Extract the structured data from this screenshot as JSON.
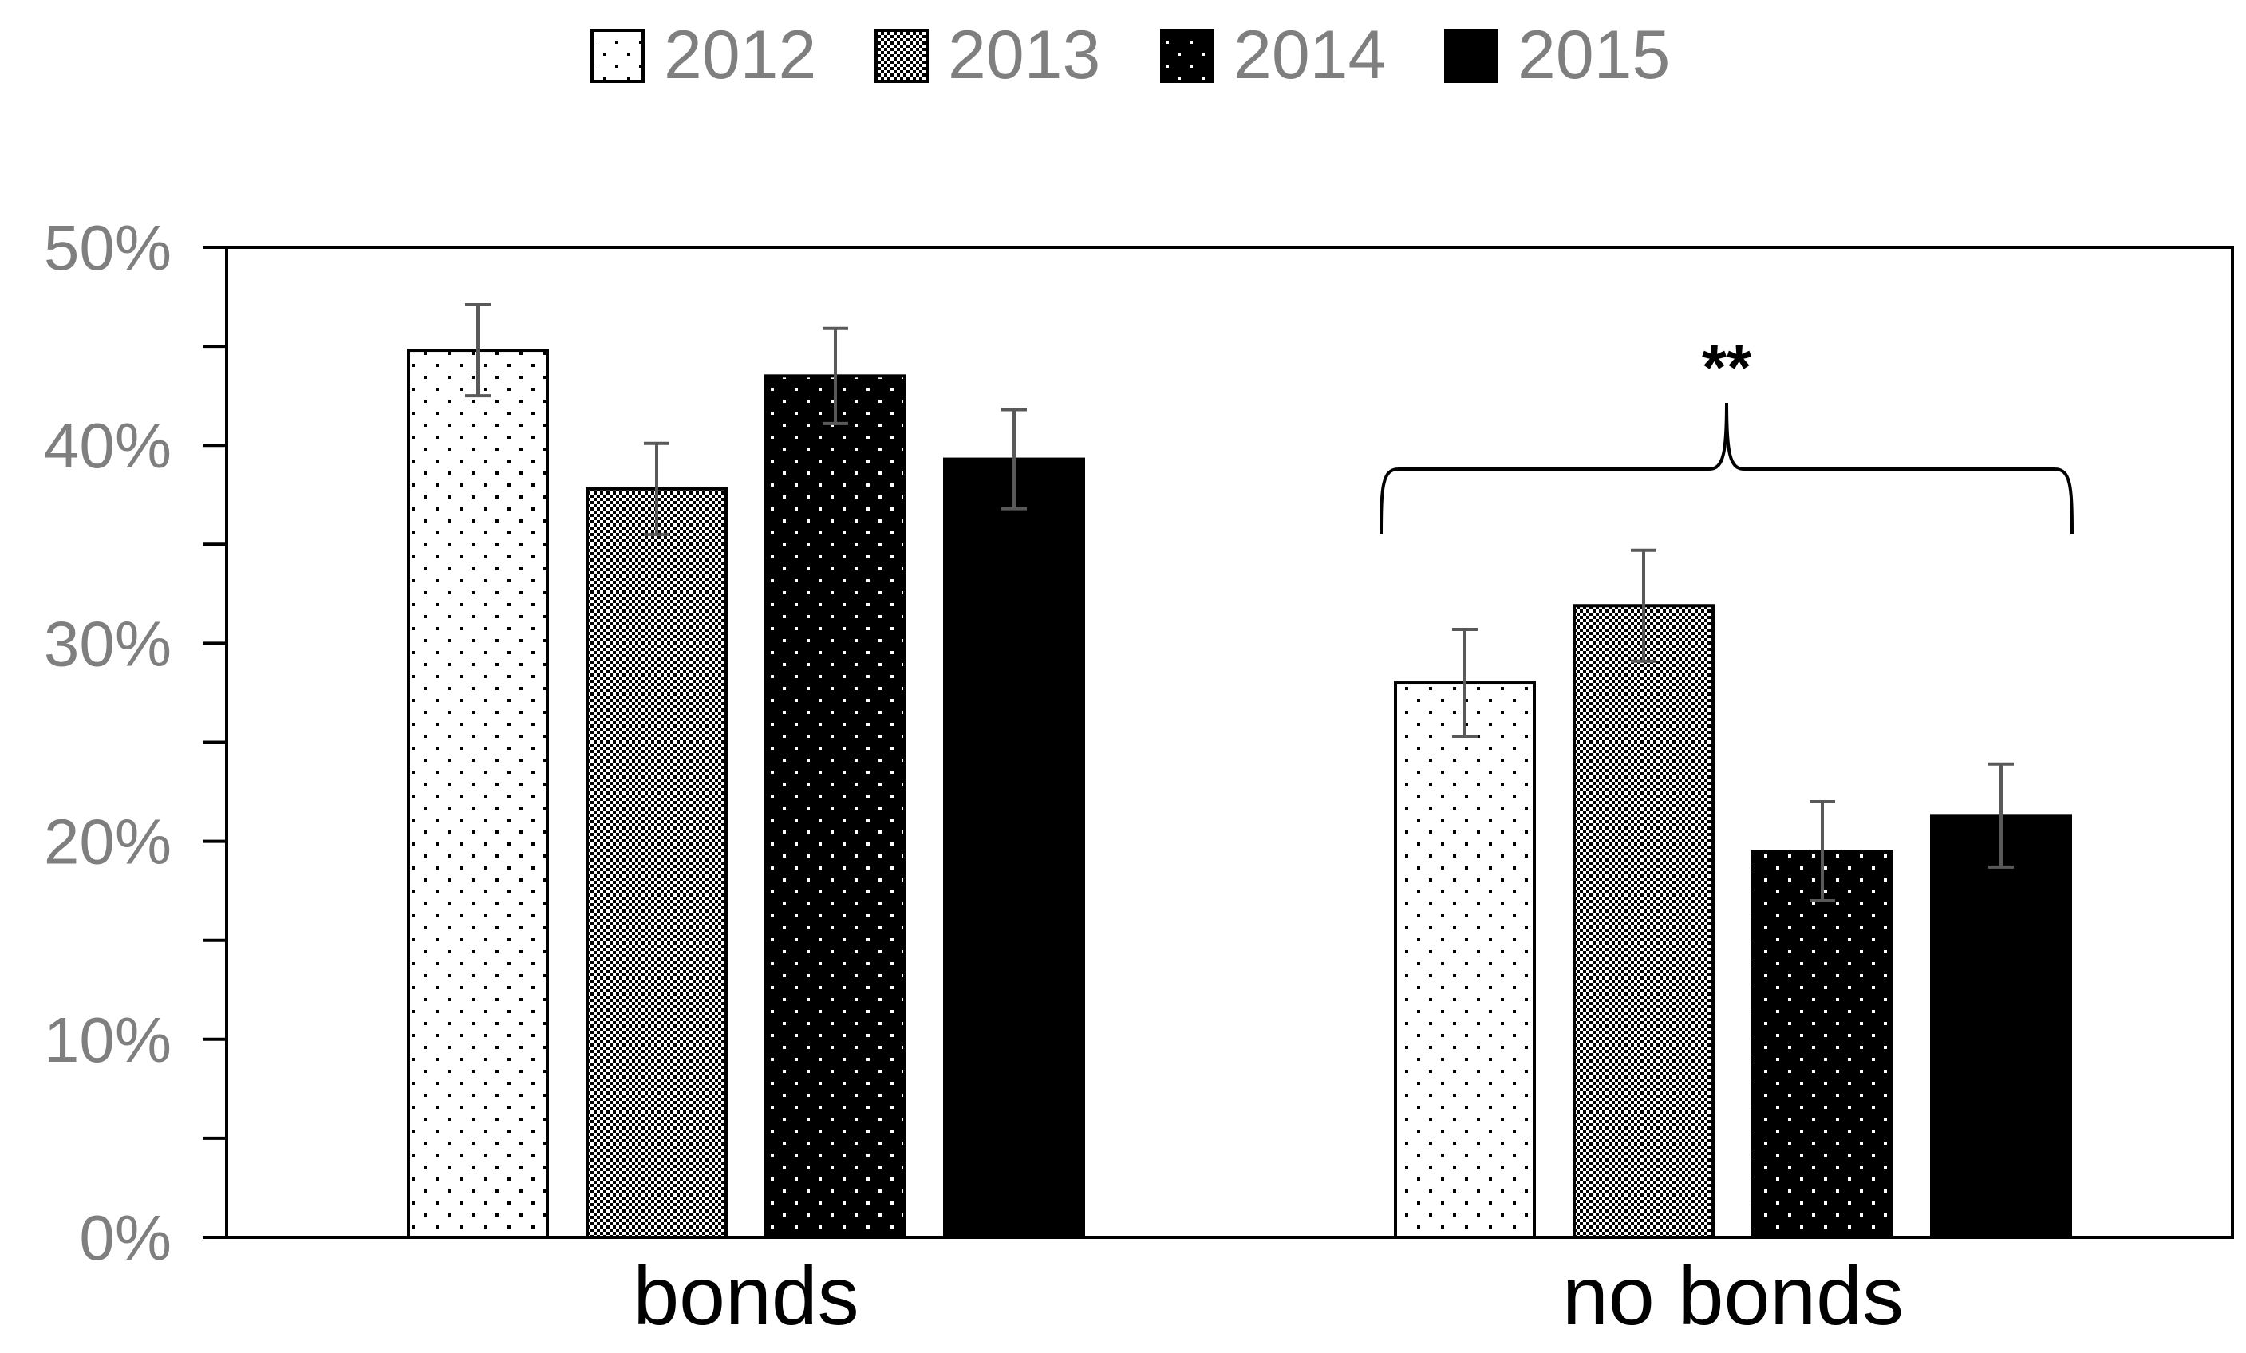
{
  "chart_data": {
    "type": "bar",
    "categories": [
      "bonds",
      "no bonds"
    ],
    "series": [
      {
        "name": "2012",
        "values": [
          44.8,
          28.0
        ],
        "errors": [
          2.3,
          2.7
        ],
        "pattern": "sparse-dots"
      },
      {
        "name": "2013",
        "values": [
          37.8,
          31.9
        ],
        "errors": [
          2.3,
          2.8
        ],
        "pattern": "checker"
      },
      {
        "name": "2014",
        "values": [
          43.5,
          19.5
        ],
        "errors": [
          2.4,
          2.5
        ],
        "pattern": "white-dots-on-black"
      },
      {
        "name": "2015",
        "values": [
          39.3,
          21.3
        ],
        "errors": [
          2.5,
          2.6
        ],
        "pattern": "solid"
      }
    ],
    "ylim": [
      0,
      50
    ],
    "yticks": [
      0,
      10,
      20,
      30,
      40,
      50
    ],
    "ytick_labels": [
      "0%",
      "10%",
      "20%",
      "30%",
      "40%",
      "50%"
    ],
    "yminor_step": 5,
    "legend_position": "top",
    "annotation": {
      "text": "**",
      "category": "no bonds",
      "type": "brace"
    },
    "colors": {
      "bar_fill": "#000000",
      "bar_outline": "#000000",
      "error_bar": "#595959",
      "tick_label": "#7f7f7f",
      "category_label": "#000000"
    }
  }
}
